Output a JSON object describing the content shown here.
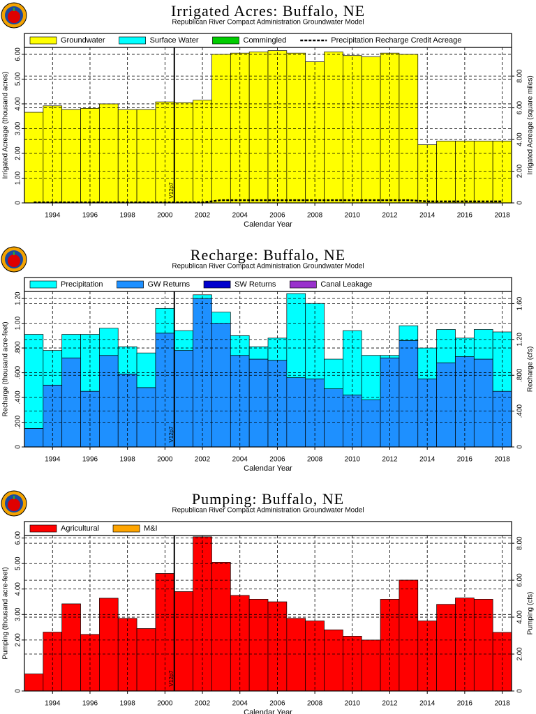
{
  "chart_data": [
    {
      "type": "bar",
      "stacked": true,
      "title": "Irrigated Acres: Buffalo, NE",
      "subtitle": "Republican River Compact Administration Groundwater Model",
      "xlabel": "Calendar Year",
      "ylabel": "Irrigated Acreage (thousand acres)",
      "y2label": "Irrigated Acreage (square miles)",
      "x": [
        1993,
        1994,
        1995,
        1996,
        1997,
        1998,
        1999,
        2000,
        2001,
        2002,
        2003,
        2004,
        2005,
        2006,
        2007,
        2008,
        2009,
        2010,
        2011,
        2012,
        2013,
        2014,
        2015,
        2016,
        2017,
        2018
      ],
      "xlim": [
        1992.5,
        2018.5
      ],
      "xticks": [
        1994,
        1996,
        1998,
        2000,
        2002,
        2004,
        2006,
        2008,
        2010,
        2012,
        2014,
        2016,
        2018
      ],
      "ylim": [
        0,
        6.28
      ],
      "yticks": [
        0,
        {
          "value": 1,
          "label": "1.00"
        },
        {
          "value": 2,
          "label": "2.00"
        },
        {
          "value": 3,
          "label": "3.00"
        },
        {
          "value": 4,
          "label": "4.00"
        },
        {
          "value": 5,
          "label": "5.00"
        },
        {
          "value": 6,
          "label": "6.00"
        }
      ],
      "y2lim": [
        0,
        9.81
      ],
      "y2ticks": [
        0,
        {
          "value": 2,
          "label": "2.00"
        },
        {
          "value": 4,
          "label": "4.00"
        },
        {
          "value": 6,
          "label": "6.00"
        },
        {
          "value": 8,
          "label": "8.00"
        }
      ],
      "grid": true,
      "legend": "top",
      "marker": {
        "label": "V12p7",
        "x": 2000.5
      },
      "series": [
        {
          "name": "Groundwater",
          "color": "#ffff00",
          "values": [
            3.66,
            3.92,
            3.77,
            3.82,
            4.0,
            3.77,
            3.77,
            4.08,
            4.05,
            4.15,
            6.0,
            6.05,
            6.1,
            6.15,
            6.05,
            5.7,
            6.1,
            5.95,
            5.9,
            6.05,
            6.0,
            2.35,
            2.5,
            2.5,
            2.5,
            2.5
          ]
        },
        {
          "name": "Surface Water",
          "color": "#00ffff",
          "values": [
            0,
            0,
            0,
            0,
            0,
            0,
            0,
            0,
            0,
            0,
            0,
            0,
            0,
            0,
            0,
            0,
            0,
            0,
            0,
            0,
            0,
            0,
            0,
            0,
            0,
            0
          ]
        },
        {
          "name": "Commingled",
          "color": "#00cc00",
          "values": [
            0,
            0,
            0,
            0,
            0,
            0,
            0,
            0,
            0,
            0,
            0,
            0,
            0,
            0,
            0,
            0,
            0,
            0,
            0,
            0,
            0,
            0,
            0,
            0,
            0,
            0
          ]
        },
        {
          "name": "Precipitation Recharge Credit Acreage",
          "type": "line",
          "dash": true,
          "color": "#000000",
          "values": [
            0.02,
            0.02,
            0.02,
            0.02,
            0.02,
            0.02,
            0.02,
            0.02,
            0.02,
            0.02,
            0.11,
            0.11,
            0.11,
            0.11,
            0.11,
            0.11,
            0.11,
            0.11,
            0.11,
            0.11,
            0.11,
            0.06,
            0.06,
            0.06,
            0.06,
            0.06
          ]
        }
      ]
    },
    {
      "type": "bar",
      "stacked": true,
      "stack_reverse": true,
      "title": "Recharge: Buffalo, NE",
      "subtitle": "Republican River Compact Administration Groundwater Model",
      "xlabel": "Calendar Year",
      "ylabel": "Recharge (thousand acre-feet)",
      "y2label": "Recharge (cfs)",
      "x": [
        1993,
        1994,
        1995,
        1996,
        1997,
        1998,
        1999,
        2000,
        2001,
        2002,
        2003,
        2004,
        2005,
        2006,
        2007,
        2008,
        2009,
        2010,
        2011,
        2012,
        2013,
        2014,
        2015,
        2016,
        2017,
        2018
      ],
      "xlim": [
        1992.5,
        2018.5
      ],
      "xticks": [
        1994,
        1996,
        1998,
        2000,
        2002,
        2004,
        2006,
        2008,
        2010,
        2012,
        2014,
        2016,
        2018
      ],
      "ylim": [
        0,
        1.257
      ],
      "yticks": [
        0,
        {
          "value": 0.2,
          "label": ".200"
        },
        {
          "value": 0.4,
          "label": ".400"
        },
        {
          "value": 0.6,
          "label": ".600"
        },
        {
          "value": 0.8,
          "label": ".800"
        },
        {
          "value": 1,
          "label": "1.00"
        },
        {
          "value": 1.2,
          "label": "1.20"
        }
      ],
      "y2lim": [
        0,
        1.736
      ],
      "y2ticks": [
        0,
        {
          "value": 0.4,
          "label": ".400"
        },
        {
          "value": 0.8,
          "label": ".800"
        },
        {
          "value": 1.2,
          "label": "1.20"
        },
        {
          "value": 1.6,
          "label": "1.60"
        }
      ],
      "grid": true,
      "legend": "top",
      "marker": {
        "label": "V12p7",
        "x": 2000.5
      },
      "series": [
        {
          "name": "Precipitation",
          "color": "#00ffff",
          "values": [
            0.76,
            0.28,
            0.19,
            0.46,
            0.22,
            0.22,
            0.28,
            0.2,
            0.16,
            0.03,
            0.09,
            0.16,
            0.1,
            0.18,
            0.68,
            0.61,
            0.24,
            0.52,
            0.36,
            0.02,
            0.12,
            0.25,
            0.27,
            0.15,
            0.24,
            0.48
          ]
        },
        {
          "name": "GW Returns",
          "color": "#1e90ff",
          "values": [
            0.15,
            0.5,
            0.72,
            0.45,
            0.74,
            0.59,
            0.48,
            0.92,
            0.78,
            1.2,
            1.0,
            0.74,
            0.71,
            0.7,
            0.56,
            0.55,
            0.47,
            0.42,
            0.38,
            0.72,
            0.86,
            0.55,
            0.68,
            0.73,
            0.71,
            0.45
          ]
        },
        {
          "name": "SW Returns",
          "color": "#0000cd",
          "values": [
            0,
            0,
            0,
            0,
            0,
            0,
            0,
            0,
            0,
            0,
            0,
            0,
            0,
            0,
            0,
            0,
            0,
            0,
            0,
            0,
            0,
            0,
            0,
            0,
            0,
            0
          ]
        },
        {
          "name": "Canal Leakage",
          "color": "#9932cc",
          "values": [
            0,
            0,
            0,
            0,
            0,
            0,
            0,
            0,
            0,
            0,
            0,
            0,
            0,
            0,
            0,
            0,
            0,
            0,
            0,
            0,
            0,
            0,
            0,
            0,
            0,
            0
          ]
        }
      ]
    },
    {
      "type": "bar",
      "stacked": true,
      "title": "Pumping: Buffalo, NE",
      "subtitle": "Republican River Compact Administration Groundwater Model",
      "xlabel": "Calendar Year",
      "ylabel": "Pumping (thousand acre-feet)",
      "y2label": "Pumping (cfs)",
      "x": [
        1993,
        1994,
        1995,
        1996,
        1997,
        1998,
        1999,
        2000,
        2001,
        2002,
        2003,
        2004,
        2005,
        2006,
        2007,
        2008,
        2009,
        2010,
        2011,
        2012,
        2013,
        2014,
        2015,
        2016,
        2017,
        2018
      ],
      "xlim": [
        1992.5,
        2018.5
      ],
      "xticks": [
        1994,
        1996,
        1998,
        2000,
        2002,
        2004,
        2006,
        2008,
        2010,
        2012,
        2014,
        2016,
        2018
      ],
      "ylim": [
        0,
        6.1
      ],
      "yticks": [
        0,
        {
          "value": 2,
          "label": "2.00"
        },
        {
          "value": 3,
          "label": "3.00"
        },
        {
          "value": 4,
          "label": "4.00"
        },
        {
          "value": 5,
          "label": "5.00"
        },
        {
          "value": 6,
          "label": "6.00"
        }
      ],
      "y2lim": [
        0,
        8.42
      ],
      "y2ticks": [
        0,
        {
          "value": 2,
          "label": "2.00"
        },
        {
          "value": 4,
          "label": "4.00"
        },
        {
          "value": 6,
          "label": "6.00"
        },
        {
          "value": 8,
          "label": "8.00"
        }
      ],
      "grid": true,
      "legend": "top",
      "marker": {
        "label": "V12p7",
        "x": 2000.5
      },
      "series": [
        {
          "name": "Agricultural",
          "color": "#ff0000",
          "values": [
            0.67,
            2.31,
            3.42,
            2.22,
            3.64,
            2.85,
            2.45,
            4.61,
            3.9,
            6.05,
            5.05,
            3.75,
            3.6,
            3.5,
            2.85,
            2.75,
            2.4,
            2.15,
            2.0,
            3.6,
            4.35,
            2.75,
            3.4,
            3.65,
            3.6,
            2.3
          ]
        },
        {
          "name": "M&I",
          "color": "#ffa500",
          "values": [
            0,
            0,
            0,
            0,
            0,
            0,
            0,
            0,
            0,
            0,
            0,
            0,
            0,
            0,
            0,
            0,
            0,
            0,
            0,
            0,
            0,
            0,
            0,
            0,
            0,
            0
          ]
        }
      ]
    }
  ]
}
